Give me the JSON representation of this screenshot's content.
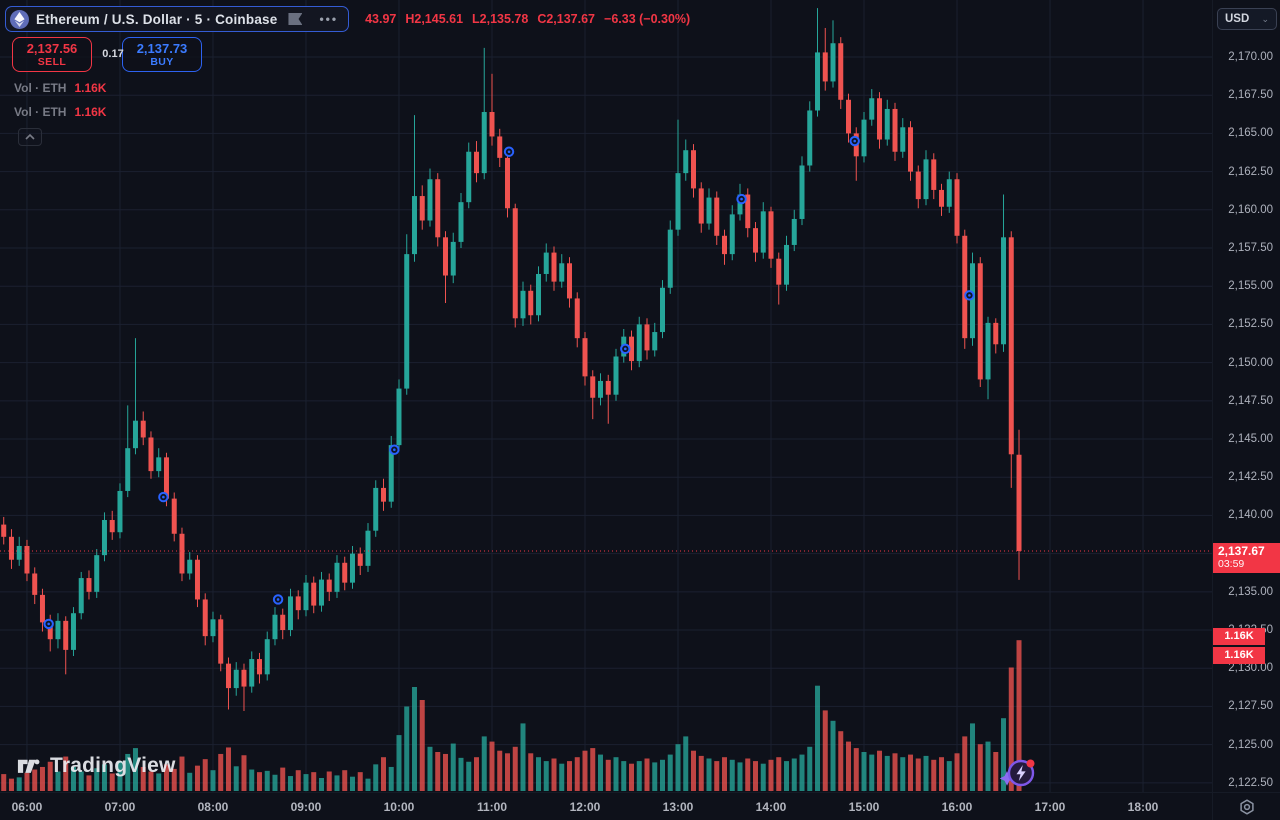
{
  "header": {
    "symbol_title": "Ethereum / U.S. Dollar · 5 · Coinbase",
    "more_label": "•••",
    "ohlc": {
      "open_partial": "43.97",
      "high": "H2,145.61",
      "low": "L2,135.78",
      "close": "C2,137.67",
      "change": "−6.33 (−0.30%)"
    }
  },
  "trade_panel": {
    "sell_price": "2,137.56",
    "sell_label": "SELL",
    "spread": "0.17",
    "buy_price": "2,137.73",
    "buy_label": "BUY"
  },
  "indicators": [
    {
      "label": "Vol · ETH",
      "value": "1.16K"
    },
    {
      "label": "Vol · ETH",
      "value": "1.16K"
    }
  ],
  "watermark": {
    "text": "TradingView"
  },
  "price_axis": {
    "currency": "USD",
    "labels": [
      "2,170.00",
      "2,167.50",
      "2,165.00",
      "2,162.50",
      "2,160.00",
      "2,157.50",
      "2,155.00",
      "2,152.50",
      "2,150.00",
      "2,147.50",
      "2,145.00",
      "2,142.50",
      "2,140.00",
      "2,137.50",
      "2,135.00",
      "2,132.50",
      "2,130.00",
      "2,127.50",
      "2,125.00",
      "2,122.50"
    ]
  },
  "time_axis": {
    "labels": [
      "06:00",
      "07:00",
      "08:00",
      "09:00",
      "10:00",
      "11:00",
      "12:00",
      "13:00",
      "14:00",
      "15:00",
      "16:00",
      "17:00",
      "18:00"
    ]
  },
  "badges": {
    "last_price": "2,137.67",
    "countdown": "03:59",
    "volume_badges": [
      "1.16K",
      "1.16K"
    ]
  },
  "chart_data": {
    "type": "candlestick",
    "title": "Ethereum / U.S. Dollar",
    "symbol": "ETHUSD",
    "exchange": "Coinbase",
    "interval_minutes": 5,
    "grid": true,
    "legend_position": "top-left",
    "ylim": [
      2121.9,
      2173.73
    ],
    "xlim_minutes_from_0600": [
      -17.4,
      764.5
    ],
    "price_ticks": [
      2170,
      2167.5,
      2165,
      2162.5,
      2160,
      2157.5,
      2155,
      2152.5,
      2150,
      2147.5,
      2145,
      2142.5,
      2140,
      2137.5,
      2135,
      2132.5,
      2130,
      2127.5,
      2125,
      2122.5
    ],
    "hour_ticks_minutes": [
      0,
      60,
      120,
      180,
      240,
      300,
      360,
      420,
      480,
      540,
      600,
      660,
      720
    ],
    "current_price": 2137.67,
    "volume_scale_max": 1200,
    "colors": {
      "up": "#26a69a",
      "down": "#ef5350",
      "price_line": "#f23645",
      "marker": "#2962ff",
      "grid": "#1b2130"
    },
    "candles": [
      [
        "05:45",
        2139.4,
        2139.9,
        2138.1,
        2138.6,
        130
      ],
      [
        "05:50",
        2138.6,
        2139.1,
        2136.5,
        2137.1,
        95
      ],
      [
        "05:55",
        2137.1,
        2138.6,
        2136.7,
        2138.0,
        105
      ],
      [
        "06:00",
        2138.0,
        2138.4,
        2135.7,
        2136.2,
        140
      ],
      [
        "06:05",
        2136.2,
        2136.6,
        2134.2,
        2134.8,
        165
      ],
      [
        "06:10",
        2134.8,
        2135.2,
        2132.4,
        2133.0,
        185
      ],
      [
        "06:15",
        2133.0,
        2133.5,
        2131.1,
        2131.9,
        225
      ],
      [
        "06:20",
        2131.9,
        2133.6,
        2131.3,
        2133.1,
        150
      ],
      [
        "06:25",
        2133.1,
        2133.4,
        2129.6,
        2131.2,
        265
      ],
      [
        "06:30",
        2131.2,
        2134.0,
        2130.8,
        2133.6,
        185
      ],
      [
        "06:35",
        2133.6,
        2136.3,
        2133.2,
        2135.9,
        150
      ],
      [
        "06:40",
        2135.9,
        2136.4,
        2134.5,
        2135.0,
        120
      ],
      [
        "06:45",
        2135.0,
        2137.8,
        2134.6,
        2137.4,
        175
      ],
      [
        "06:50",
        2137.4,
        2140.2,
        2137.0,
        2139.7,
        205
      ],
      [
        "06:55",
        2139.7,
        2140.3,
        2138.4,
        2138.9,
        135
      ],
      [
        "07:00",
        2138.9,
        2142.1,
        2138.5,
        2141.6,
        230
      ],
      [
        "07:05",
        2141.6,
        2147.2,
        2141.2,
        2144.4,
        285
      ],
      [
        "07:10",
        2144.4,
        2151.6,
        2144.0,
        2146.2,
        330
      ],
      [
        "07:15",
        2146.2,
        2146.8,
        2144.6,
        2145.1,
        185
      ],
      [
        "07:20",
        2145.1,
        2145.5,
        2142.4,
        2142.9,
        150
      ],
      [
        "07:25",
        2142.9,
        2144.4,
        2142.5,
        2143.8,
        135
      ],
      [
        "07:30",
        2143.8,
        2144.1,
        2140.6,
        2141.1,
        205
      ],
      [
        "07:35",
        2141.1,
        2141.5,
        2138.3,
        2138.8,
        170
      ],
      [
        "07:40",
        2138.8,
        2139.2,
        2135.7,
        2136.2,
        265
      ],
      [
        "07:45",
        2136.2,
        2137.6,
        2135.8,
        2137.1,
        140
      ],
      [
        "07:50",
        2137.1,
        2137.4,
        2134.0,
        2134.5,
        195
      ],
      [
        "07:55",
        2134.5,
        2134.9,
        2131.5,
        2132.1,
        245
      ],
      [
        "08:00",
        2132.1,
        2133.7,
        2131.7,
        2133.2,
        160
      ],
      [
        "08:05",
        2133.2,
        2133.5,
        2129.8,
        2130.3,
        285
      ],
      [
        "08:10",
        2130.3,
        2130.7,
        2127.3,
        2128.7,
        335
      ],
      [
        "08:15",
        2128.7,
        2130.4,
        2128.2,
        2129.9,
        190
      ],
      [
        "08:20",
        2129.9,
        2130.3,
        2127.2,
        2128.8,
        275
      ],
      [
        "08:25",
        2128.8,
        2131.1,
        2128.4,
        2130.6,
        165
      ],
      [
        "08:30",
        2130.6,
        2131.0,
        2129.0,
        2129.6,
        145
      ],
      [
        "08:35",
        2129.6,
        2132.4,
        2129.2,
        2131.9,
        155
      ],
      [
        "08:40",
        2131.9,
        2134.0,
        2131.5,
        2133.5,
        125
      ],
      [
        "08:45",
        2133.5,
        2133.9,
        2131.9,
        2132.5,
        180
      ],
      [
        "08:50",
        2132.5,
        2135.2,
        2132.1,
        2134.7,
        115
      ],
      [
        "08:55",
        2134.7,
        2135.1,
        2133.2,
        2133.8,
        160
      ],
      [
        "09:00",
        2133.8,
        2136.1,
        2133.4,
        2135.6,
        130
      ],
      [
        "09:05",
        2135.6,
        2136.0,
        2133.6,
        2134.1,
        145
      ],
      [
        "09:10",
        2134.1,
        2136.3,
        2133.7,
        2135.8,
        100
      ],
      [
        "09:15",
        2135.8,
        2136.2,
        2134.4,
        2135.0,
        150
      ],
      [
        "09:20",
        2135.0,
        2137.4,
        2134.6,
        2136.9,
        120
      ],
      [
        "09:25",
        2136.9,
        2137.3,
        2135.1,
        2135.6,
        160
      ],
      [
        "09:30",
        2135.6,
        2138.0,
        2135.2,
        2137.5,
        110
      ],
      [
        "09:35",
        2137.5,
        2137.9,
        2136.1,
        2136.7,
        145
      ],
      [
        "09:40",
        2136.7,
        2139.5,
        2136.3,
        2139.0,
        95
      ],
      [
        "09:45",
        2139.0,
        2142.3,
        2138.6,
        2141.8,
        205
      ],
      [
        "09:50",
        2141.8,
        2142.4,
        2140.3,
        2140.9,
        260
      ],
      [
        "09:55",
        2140.9,
        2145.2,
        2140.5,
        2144.6,
        185
      ],
      [
        "10:00",
        2144.6,
        2148.9,
        2144.2,
        2148.3,
        430
      ],
      [
        "10:05",
        2148.3,
        2158.4,
        2147.9,
        2157.1,
        650
      ],
      [
        "10:10",
        2157.1,
        2166.2,
        2156.6,
        2160.9,
        800
      ],
      [
        "10:15",
        2160.9,
        2161.6,
        2158.7,
        2159.3,
        700
      ],
      [
        "10:20",
        2159.3,
        2162.7,
        2158.9,
        2162.0,
        340
      ],
      [
        "10:25",
        2162.0,
        2162.4,
        2157.6,
        2158.2,
        300
      ],
      [
        "10:30",
        2158.2,
        2158.6,
        2153.9,
        2155.7,
        285
      ],
      [
        "10:35",
        2155.7,
        2158.5,
        2155.2,
        2157.9,
        365
      ],
      [
        "10:40",
        2157.9,
        2161.1,
        2157.5,
        2160.5,
        255
      ],
      [
        "10:45",
        2160.5,
        2164.4,
        2160.1,
        2163.8,
        225
      ],
      [
        "10:50",
        2163.8,
        2164.5,
        2161.8,
        2162.4,
        260
      ],
      [
        "10:55",
        2162.4,
        2170.6,
        2162.0,
        2166.4,
        420
      ],
      [
        "11:00",
        2166.4,
        2168.9,
        2164.2,
        2164.8,
        380
      ],
      [
        "11:05",
        2164.8,
        2165.3,
        2162.8,
        2163.4,
        310
      ],
      [
        "11:10",
        2163.4,
        2163.8,
        2159.5,
        2160.1,
        290
      ],
      [
        "11:15",
        2160.1,
        2160.4,
        2152.3,
        2152.9,
        340
      ],
      [
        "11:20",
        2152.9,
        2155.3,
        2152.4,
        2154.7,
        520
      ],
      [
        "11:25",
        2154.7,
        2155.1,
        2152.5,
        2153.1,
        290
      ],
      [
        "11:30",
        2153.1,
        2156.3,
        2152.7,
        2155.8,
        260
      ],
      [
        "11:35",
        2155.8,
        2157.8,
        2155.3,
        2157.2,
        230
      ],
      [
        "11:40",
        2157.2,
        2157.6,
        2154.7,
        2155.3,
        250
      ],
      [
        "11:45",
        2155.3,
        2157.1,
        2154.9,
        2156.5,
        210
      ],
      [
        "11:50",
        2156.5,
        2156.9,
        2153.6,
        2154.2,
        230
      ],
      [
        "11:55",
        2154.2,
        2154.6,
        2151.0,
        2151.6,
        260
      ],
      [
        "12:00",
        2151.6,
        2152.0,
        2148.5,
        2149.1,
        310
      ],
      [
        "12:05",
        2149.1,
        2149.5,
        2146.3,
        2147.7,
        330
      ],
      [
        "12:10",
        2147.7,
        2149.3,
        2147.2,
        2148.8,
        280
      ],
      [
        "12:15",
        2148.8,
        2149.2,
        2146.0,
        2147.9,
        240
      ],
      [
        "12:20",
        2147.9,
        2150.9,
        2147.5,
        2150.4,
        260
      ],
      [
        "12:25",
        2150.4,
        2152.2,
        2150.0,
        2151.7,
        230
      ],
      [
        "12:30",
        2151.7,
        2152.1,
        2149.5,
        2150.1,
        210
      ],
      [
        "12:35",
        2150.1,
        2153.0,
        2149.7,
        2152.5,
        230
      ],
      [
        "12:40",
        2152.5,
        2152.9,
        2150.2,
        2150.8,
        250
      ],
      [
        "12:45",
        2150.8,
        2152.6,
        2150.4,
        2152.0,
        220
      ],
      [
        "12:50",
        2152.0,
        2155.4,
        2151.6,
        2154.9,
        240
      ],
      [
        "12:55",
        2154.9,
        2159.3,
        2154.5,
        2158.7,
        280
      ],
      [
        "13:00",
        2158.7,
        2165.9,
        2158.3,
        2162.4,
        360
      ],
      [
        "13:05",
        2162.4,
        2164.6,
        2161.9,
        2163.9,
        420
      ],
      [
        "13:10",
        2163.9,
        2164.3,
        2160.8,
        2161.4,
        310
      ],
      [
        "13:15",
        2161.4,
        2161.8,
        2158.5,
        2159.1,
        270
      ],
      [
        "13:20",
        2159.1,
        2161.4,
        2158.7,
        2160.8,
        250
      ],
      [
        "13:25",
        2160.8,
        2161.2,
        2157.7,
        2158.3,
        230
      ],
      [
        "13:30",
        2158.3,
        2158.7,
        2156.4,
        2157.1,
        260
      ],
      [
        "13:35",
        2157.1,
        2160.3,
        2156.7,
        2159.7,
        240
      ],
      [
        "13:40",
        2159.7,
        2161.7,
        2159.3,
        2161.0,
        220
      ],
      [
        "13:45",
        2161.0,
        2161.4,
        2158.2,
        2158.8,
        250
      ],
      [
        "13:50",
        2158.8,
        2159.2,
        2156.6,
        2157.2,
        230
      ],
      [
        "13:55",
        2157.2,
        2160.5,
        2156.8,
        2159.9,
        210
      ],
      [
        "14:00",
        2159.9,
        2160.2,
        2156.2,
        2156.8,
        240
      ],
      [
        "14:05",
        2156.8,
        2157.2,
        2153.8,
        2155.1,
        260
      ],
      [
        "14:10",
        2155.1,
        2158.3,
        2154.7,
        2157.7,
        230
      ],
      [
        "14:15",
        2157.7,
        2160.0,
        2157.3,
        2159.4,
        250
      ],
      [
        "14:20",
        2159.4,
        2163.5,
        2159.0,
        2162.9,
        280
      ],
      [
        "14:25",
        2162.9,
        2167.1,
        2162.5,
        2166.5,
        340
      ],
      [
        "14:30",
        2166.5,
        2173.2,
        2166.1,
        2170.3,
        810
      ],
      [
        "14:35",
        2170.3,
        2171.9,
        2167.8,
        2168.4,
        620
      ],
      [
        "14:40",
        2168.4,
        2172.4,
        2168.0,
        2170.9,
        540
      ],
      [
        "14:45",
        2170.9,
        2171.3,
        2166.6,
        2167.2,
        460
      ],
      [
        "14:50",
        2167.2,
        2167.6,
        2164.4,
        2165.0,
        380
      ],
      [
        "14:55",
        2165.0,
        2165.4,
        2161.9,
        2163.5,
        330
      ],
      [
        "15:00",
        2163.5,
        2166.4,
        2163.1,
        2165.9,
        300
      ],
      [
        "15:05",
        2165.9,
        2167.9,
        2165.5,
        2167.3,
        280
      ],
      [
        "15:10",
        2167.3,
        2167.7,
        2164.0,
        2164.6,
        310
      ],
      [
        "15:15",
        2164.6,
        2167.2,
        2164.2,
        2166.6,
        270
      ],
      [
        "15:20",
        2166.6,
        2167.0,
        2163.2,
        2163.8,
        290
      ],
      [
        "15:25",
        2163.8,
        2166.0,
        2163.4,
        2165.4,
        260
      ],
      [
        "15:30",
        2165.4,
        2165.8,
        2161.9,
        2162.5,
        280
      ],
      [
        "15:35",
        2162.5,
        2162.9,
        2160.1,
        2160.7,
        250
      ],
      [
        "15:40",
        2160.7,
        2163.9,
        2160.3,
        2163.3,
        270
      ],
      [
        "15:45",
        2163.3,
        2163.7,
        2160.7,
        2161.3,
        240
      ],
      [
        "15:50",
        2161.3,
        2161.7,
        2159.6,
        2160.2,
        260
      ],
      [
        "15:55",
        2160.2,
        2162.5,
        2159.8,
        2162.0,
        230
      ],
      [
        "16:00",
        2162.0,
        2162.4,
        2157.8,
        2158.3,
        290
      ],
      [
        "16:05",
        2158.3,
        2158.7,
        2150.9,
        2151.6,
        420
      ],
      [
        "16:10",
        2151.6,
        2157.2,
        2151.1,
        2156.5,
        520
      ],
      [
        "16:15",
        2156.5,
        2156.9,
        2148.4,
        2148.9,
        360
      ],
      [
        "16:20",
        2148.9,
        2153.0,
        2147.6,
        2152.6,
        380
      ],
      [
        "16:25",
        2152.6,
        2152.9,
        2150.6,
        2151.2,
        300
      ],
      [
        "16:30",
        2151.2,
        2161.0,
        2150.7,
        2158.2,
        560
      ],
      [
        "16:35",
        2158.2,
        2158.6,
        2141.8,
        2144.0,
        950
      ],
      [
        "16:40",
        2143.97,
        2145.61,
        2135.78,
        2137.67,
        1160
      ]
    ],
    "markers": [
      [
        "06:14",
        2132.9
      ],
      [
        "07:28",
        2141.2
      ],
      [
        "08:42",
        2134.5
      ],
      [
        "09:57",
        2144.3
      ],
      [
        "11:11",
        2163.8
      ],
      [
        "12:26",
        2150.9
      ],
      [
        "13:41",
        2160.7
      ],
      [
        "14:54",
        2164.5
      ],
      [
        "16:08",
        2154.4
      ]
    ]
  }
}
